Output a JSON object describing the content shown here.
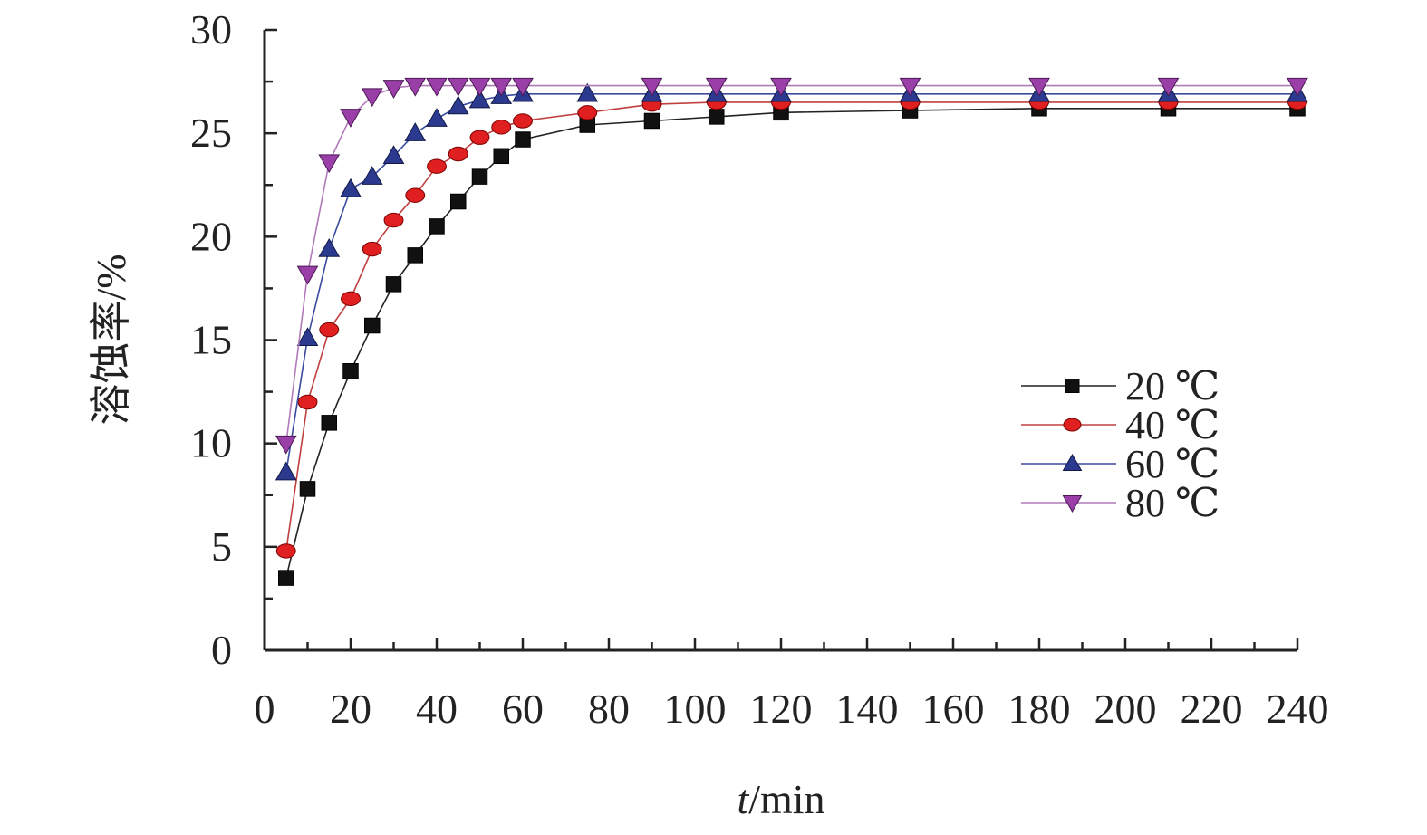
{
  "chart_data": {
    "type": "line",
    "title": "",
    "xlabel_italic": "t",
    "xlabel_rest": "/min",
    "ylabel": "溶蚀率/%",
    "xlim": [
      0,
      240
    ],
    "ylim": [
      0,
      30
    ],
    "xticks": [
      0,
      20,
      40,
      60,
      80,
      100,
      120,
      140,
      160,
      180,
      200,
      220,
      240
    ],
    "yticks": [
      0,
      5,
      10,
      15,
      20,
      25,
      30
    ],
    "grid": false,
    "legend_position": "right-middle",
    "series": [
      {
        "name": "20 ℃",
        "marker": "square",
        "color": "#111111",
        "points": [
          [
            5,
            3.5
          ],
          [
            10,
            7.8
          ],
          [
            15,
            11.0
          ],
          [
            20,
            13.5
          ],
          [
            25,
            15.7
          ],
          [
            30,
            17.7
          ],
          [
            35,
            19.1
          ],
          [
            40,
            20.5
          ],
          [
            45,
            21.7
          ],
          [
            50,
            22.9
          ],
          [
            55,
            23.9
          ],
          [
            60,
            24.7
          ],
          [
            75,
            25.4
          ],
          [
            90,
            25.6
          ],
          [
            105,
            25.8
          ],
          [
            120,
            26.0
          ],
          [
            150,
            26.1
          ],
          [
            180,
            26.2
          ],
          [
            210,
            26.2
          ],
          [
            240,
            26.2
          ]
        ]
      },
      {
        "name": "40 ℃",
        "marker": "circle",
        "color": "#e02020",
        "points": [
          [
            5,
            4.8
          ],
          [
            10,
            12.0
          ],
          [
            15,
            15.5
          ],
          [
            20,
            17.0
          ],
          [
            25,
            19.4
          ],
          [
            30,
            20.8
          ],
          [
            35,
            22.0
          ],
          [
            40,
            23.4
          ],
          [
            45,
            24.0
          ],
          [
            50,
            24.8
          ],
          [
            55,
            25.3
          ],
          [
            60,
            25.6
          ],
          [
            75,
            26.0
          ],
          [
            90,
            26.4
          ],
          [
            105,
            26.5
          ],
          [
            120,
            26.5
          ],
          [
            150,
            26.5
          ],
          [
            180,
            26.5
          ],
          [
            210,
            26.5
          ],
          [
            240,
            26.5
          ]
        ]
      },
      {
        "name": "60 ℃",
        "marker": "triangle-up",
        "color": "#2b3a8f",
        "points": [
          [
            5,
            8.6
          ],
          [
            10,
            15.1
          ],
          [
            15,
            19.4
          ],
          [
            20,
            22.3
          ],
          [
            25,
            22.9
          ],
          [
            30,
            23.9
          ],
          [
            35,
            25.0
          ],
          [
            40,
            25.7
          ],
          [
            45,
            26.3
          ],
          [
            50,
            26.6
          ],
          [
            55,
            26.8
          ],
          [
            60,
            26.9
          ],
          [
            75,
            26.9
          ],
          [
            90,
            26.9
          ],
          [
            105,
            26.9
          ],
          [
            120,
            26.9
          ],
          [
            150,
            26.9
          ],
          [
            180,
            26.9
          ],
          [
            210,
            26.9
          ],
          [
            240,
            26.9
          ]
        ]
      },
      {
        "name": "80 ℃",
        "marker": "triangle-down",
        "color": "#9b3fa8",
        "points": [
          [
            5,
            10.0
          ],
          [
            10,
            18.2
          ],
          [
            15,
            23.6
          ],
          [
            20,
            25.8
          ],
          [
            25,
            26.8
          ],
          [
            30,
            27.2
          ],
          [
            35,
            27.3
          ],
          [
            40,
            27.3
          ],
          [
            45,
            27.3
          ],
          [
            50,
            27.3
          ],
          [
            55,
            27.3
          ],
          [
            60,
            27.3
          ],
          [
            90,
            27.3
          ],
          [
            105,
            27.3
          ],
          [
            120,
            27.3
          ],
          [
            150,
            27.3
          ],
          [
            180,
            27.3
          ],
          [
            210,
            27.3
          ],
          [
            240,
            27.3
          ]
        ]
      }
    ]
  }
}
